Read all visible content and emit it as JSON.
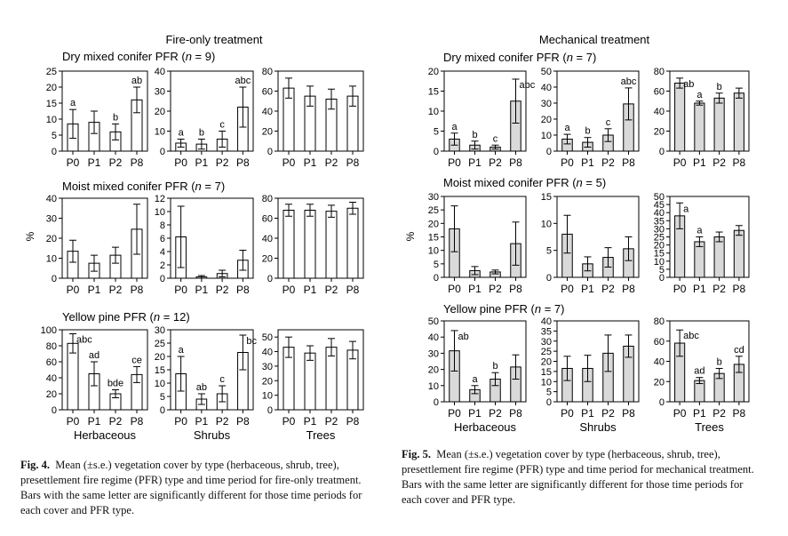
{
  "figures": [
    {
      "title": "Fire-only treatment",
      "ylabel": "%",
      "column_labels": [
        "Herbaceous",
        "Shrubs",
        "Trees"
      ],
      "fill": "#ffffff",
      "rows": [
        {
          "title_parts": [
            "Dry mixed conifer PFR (",
            "n",
            " = 9)"
          ]
        },
        {
          "title_parts": [
            "Moist mixed conifer PFR (",
            "n",
            " = 7)"
          ]
        },
        {
          "title_parts": [
            "Yellow pine PFR (",
            "n",
            " = 12)"
          ]
        }
      ]
    },
    {
      "title": "Mechanical treatment",
      "ylabel": "%",
      "column_labels": [
        "Herbaceous",
        "Shrubs",
        "Trees"
      ],
      "fill": "#d9d9d9",
      "rows": [
        {
          "title_parts": [
            "Dry mixed conifer PFR (",
            "n",
            " = 7)"
          ]
        },
        {
          "title_parts": [
            "Moist mixed conifer PFR (",
            "n",
            " = 5)"
          ]
        },
        {
          "title_parts": [
            "Yellow pine PFR (",
            "n",
            " = 7)"
          ]
        }
      ]
    }
  ],
  "captions": [
    {
      "label": "Fig. 4.",
      "text": "Mean (±s.e.) vegetation cover by type (herbaceous, shrub, tree), presettlement fire regime (PFR) type and time period for fire-only treatment. Bars with the same letter are significantly different for those time periods for each cover and PFR type."
    },
    {
      "label": "Fig. 5.",
      "text": "Mean (±s.e.) vegetation cover by type (herbaceous, shrub, tree), presettlement fire regime (PFR) type and time period for mechanical treatment. Bars with the same letter are significantly different for those time periods for each cover and PFR type."
    }
  ],
  "chart_data": [
    {
      "type": "bar",
      "figure": 0,
      "row": 0,
      "col": 0,
      "categories": [
        "P0",
        "P1",
        "P2",
        "P8"
      ],
      "values": [
        8.5,
        9,
        6,
        16
      ],
      "errors": [
        4.5,
        3.5,
        2.5,
        4
      ],
      "letters": [
        "a",
        "",
        "b",
        "ab"
      ],
      "ylim": [
        0,
        25
      ],
      "ticks": [
        0,
        5,
        10,
        15,
        20,
        25
      ]
    },
    {
      "type": "bar",
      "figure": 0,
      "row": 0,
      "col": 1,
      "categories": [
        "P0",
        "P1",
        "P2",
        "P8"
      ],
      "values": [
        4,
        3.5,
        6,
        22
      ],
      "errors": [
        2,
        2.5,
        4,
        10
      ],
      "letters": [
        "a",
        "b",
        "c",
        "abc"
      ],
      "ylim": [
        0,
        40
      ],
      "ticks": [
        0,
        10,
        20,
        30,
        40
      ]
    },
    {
      "type": "bar",
      "figure": 0,
      "row": 0,
      "col": 2,
      "categories": [
        "P0",
        "P1",
        "P2",
        "P8"
      ],
      "values": [
        63,
        55,
        52,
        55
      ],
      "errors": [
        10,
        10,
        10,
        10
      ],
      "letters": [
        "",
        "",
        "",
        ""
      ],
      "ylim": [
        0,
        80
      ],
      "ticks": [
        0,
        20,
        40,
        60,
        80
      ]
    },
    {
      "type": "bar",
      "figure": 0,
      "row": 1,
      "col": 0,
      "categories": [
        "P0",
        "P1",
        "P2",
        "P8"
      ],
      "values": [
        13.5,
        7.5,
        11.5,
        24.5
      ],
      "errors": [
        5.5,
        4,
        4,
        12.5
      ],
      "letters": [
        "",
        "",
        "",
        ""
      ],
      "ylim": [
        0,
        40
      ],
      "ticks": [
        0,
        10,
        20,
        30,
        40
      ]
    },
    {
      "type": "bar",
      "figure": 0,
      "row": 1,
      "col": 1,
      "categories": [
        "P0",
        "P1",
        "P2",
        "P8"
      ],
      "values": [
        6.2,
        0.2,
        0.7,
        2.7
      ],
      "errors": [
        4.6,
        0.2,
        0.5,
        1.5
      ],
      "letters": [
        "",
        "",
        "",
        ""
      ],
      "ylim": [
        0,
        12
      ],
      "ticks": [
        0,
        2,
        4,
        6,
        8,
        10,
        12
      ]
    },
    {
      "type": "bar",
      "figure": 0,
      "row": 1,
      "col": 2,
      "categories": [
        "P0",
        "P1",
        "P2",
        "P8"
      ],
      "values": [
        68,
        68,
        67,
        70
      ],
      "errors": [
        6,
        6,
        6,
        6
      ],
      "letters": [
        "",
        "",
        "",
        ""
      ],
      "ylim": [
        0,
        80
      ],
      "ticks": [
        0,
        20,
        40,
        60,
        80
      ]
    },
    {
      "type": "bar",
      "figure": 0,
      "row": 2,
      "col": 0,
      "categories": [
        "P0",
        "P1",
        "P2",
        "P8"
      ],
      "values": [
        83,
        45,
        20,
        44
      ],
      "errors": [
        12,
        15,
        5,
        10
      ],
      "letters": [
        "abc",
        "ad",
        "bde",
        "ce"
      ],
      "ylim": [
        0,
        100
      ],
      "ticks": [
        0,
        20,
        40,
        60,
        80,
        100
      ]
    },
    {
      "type": "bar",
      "figure": 0,
      "row": 2,
      "col": 1,
      "categories": [
        "P0",
        "P1",
        "P2",
        "P8"
      ],
      "values": [
        13.5,
        4,
        6,
        21.5
      ],
      "errors": [
        6.5,
        2,
        3,
        6.5
      ],
      "letters": [
        "a",
        "ab",
        "c",
        "bc"
      ],
      "ylim": [
        0,
        30
      ],
      "ticks": [
        0,
        5,
        10,
        15,
        20,
        25,
        30
      ]
    },
    {
      "type": "bar",
      "figure": 0,
      "row": 2,
      "col": 2,
      "categories": [
        "P0",
        "P1",
        "P2",
        "P8"
      ],
      "values": [
        43,
        39,
        43,
        41
      ],
      "errors": [
        7,
        5,
        6,
        6
      ],
      "letters": [
        "",
        "",
        "",
        ""
      ],
      "ylim": [
        0,
        55
      ],
      "ticks": [
        0,
        10,
        20,
        30,
        40,
        50
      ]
    },
    {
      "type": "bar",
      "figure": 1,
      "row": 0,
      "col": 0,
      "categories": [
        "P0",
        "P1",
        "P2",
        "P8"
      ],
      "values": [
        3,
        1.5,
        1,
        12.5
      ],
      "errors": [
        1.5,
        1,
        0.5,
        5.5
      ],
      "letters": [
        "a",
        "b",
        "c",
        "abc"
      ],
      "ylim": [
        0,
        20
      ],
      "ticks": [
        0,
        5,
        10,
        15,
        20
      ]
    },
    {
      "type": "bar",
      "figure": 1,
      "row": 0,
      "col": 1,
      "categories": [
        "P0",
        "P1",
        "P2",
        "P8"
      ],
      "values": [
        7.5,
        5.5,
        10,
        29.5
      ],
      "errors": [
        3,
        3,
        4,
        10
      ],
      "letters": [
        "a",
        "b",
        "c",
        "abc"
      ],
      "ylim": [
        0,
        50
      ],
      "ticks": [
        0,
        10,
        20,
        30,
        40,
        50
      ]
    },
    {
      "type": "bar",
      "figure": 1,
      "row": 0,
      "col": 2,
      "categories": [
        "P0",
        "P1",
        "P2",
        "P8"
      ],
      "values": [
        68,
        48,
        53,
        58
      ],
      "errors": [
        5,
        2,
        5,
        5
      ],
      "letters": [
        "ab",
        "a",
        "b",
        ""
      ],
      "ylim": [
        0,
        80
      ],
      "ticks": [
        0,
        20,
        40,
        60,
        80
      ]
    },
    {
      "type": "bar",
      "figure": 1,
      "row": 1,
      "col": 0,
      "categories": [
        "P0",
        "P1",
        "P2",
        "P8"
      ],
      "values": [
        18,
        2.5,
        2,
        12.5
      ],
      "errors": [
        8.5,
        1.5,
        0.7,
        8
      ],
      "letters": [
        "",
        "",
        "",
        ""
      ],
      "ylim": [
        0,
        30
      ],
      "ticks": [
        0,
        5,
        10,
        15,
        20,
        25,
        30
      ]
    },
    {
      "type": "bar",
      "figure": 1,
      "row": 1,
      "col": 1,
      "categories": [
        "P0",
        "P1",
        "P2",
        "P8"
      ],
      "values": [
        8,
        2.5,
        3.7,
        5.3
      ],
      "errors": [
        3.5,
        1.3,
        1.8,
        2.2
      ],
      "letters": [
        "",
        "",
        "",
        ""
      ],
      "ylim": [
        0,
        15
      ],
      "ticks": [
        0,
        5,
        10,
        15
      ]
    },
    {
      "type": "bar",
      "figure": 1,
      "row": 1,
      "col": 2,
      "categories": [
        "P0",
        "P1",
        "P2",
        "P8"
      ],
      "values": [
        38,
        22,
        25,
        29
      ],
      "errors": [
        8,
        3,
        3,
        3
      ],
      "letters": [
        "a",
        "a",
        "",
        ""
      ],
      "ylim": [
        0,
        50
      ],
      "ticks": [
        0,
        5,
        10,
        15,
        20,
        25,
        30,
        35,
        40,
        45,
        50
      ]
    },
    {
      "type": "bar",
      "figure": 1,
      "row": 2,
      "col": 0,
      "categories": [
        "P0",
        "P1",
        "P2",
        "P8"
      ],
      "values": [
        31.5,
        7.5,
        14,
        21.5
      ],
      "errors": [
        12.5,
        2.5,
        4,
        7.5
      ],
      "letters": [
        "ab",
        "a",
        "b",
        ""
      ],
      "ylim": [
        0,
        50
      ],
      "ticks": [
        0,
        10,
        20,
        30,
        40,
        50
      ]
    },
    {
      "type": "bar",
      "figure": 1,
      "row": 2,
      "col": 1,
      "categories": [
        "P0",
        "P1",
        "P2",
        "P8"
      ],
      "values": [
        16.5,
        16.5,
        24,
        27.5
      ],
      "errors": [
        6,
        6.5,
        9,
        5.5
      ],
      "letters": [
        "",
        "",
        "",
        ""
      ],
      "ylim": [
        0,
        40
      ],
      "ticks": [
        0,
        5,
        10,
        15,
        20,
        25,
        30,
        35,
        40
      ]
    },
    {
      "type": "bar",
      "figure": 1,
      "row": 2,
      "col": 2,
      "categories": [
        "P0",
        "P1",
        "P2",
        "P8"
      ],
      "values": [
        58,
        21,
        28,
        37
      ],
      "errors": [
        13,
        3,
        5,
        8
      ],
      "letters": [
        "abc",
        "ad",
        "b",
        "cd"
      ],
      "ylim": [
        0,
        80
      ],
      "ticks": [
        0,
        20,
        40,
        60,
        80
      ]
    }
  ]
}
